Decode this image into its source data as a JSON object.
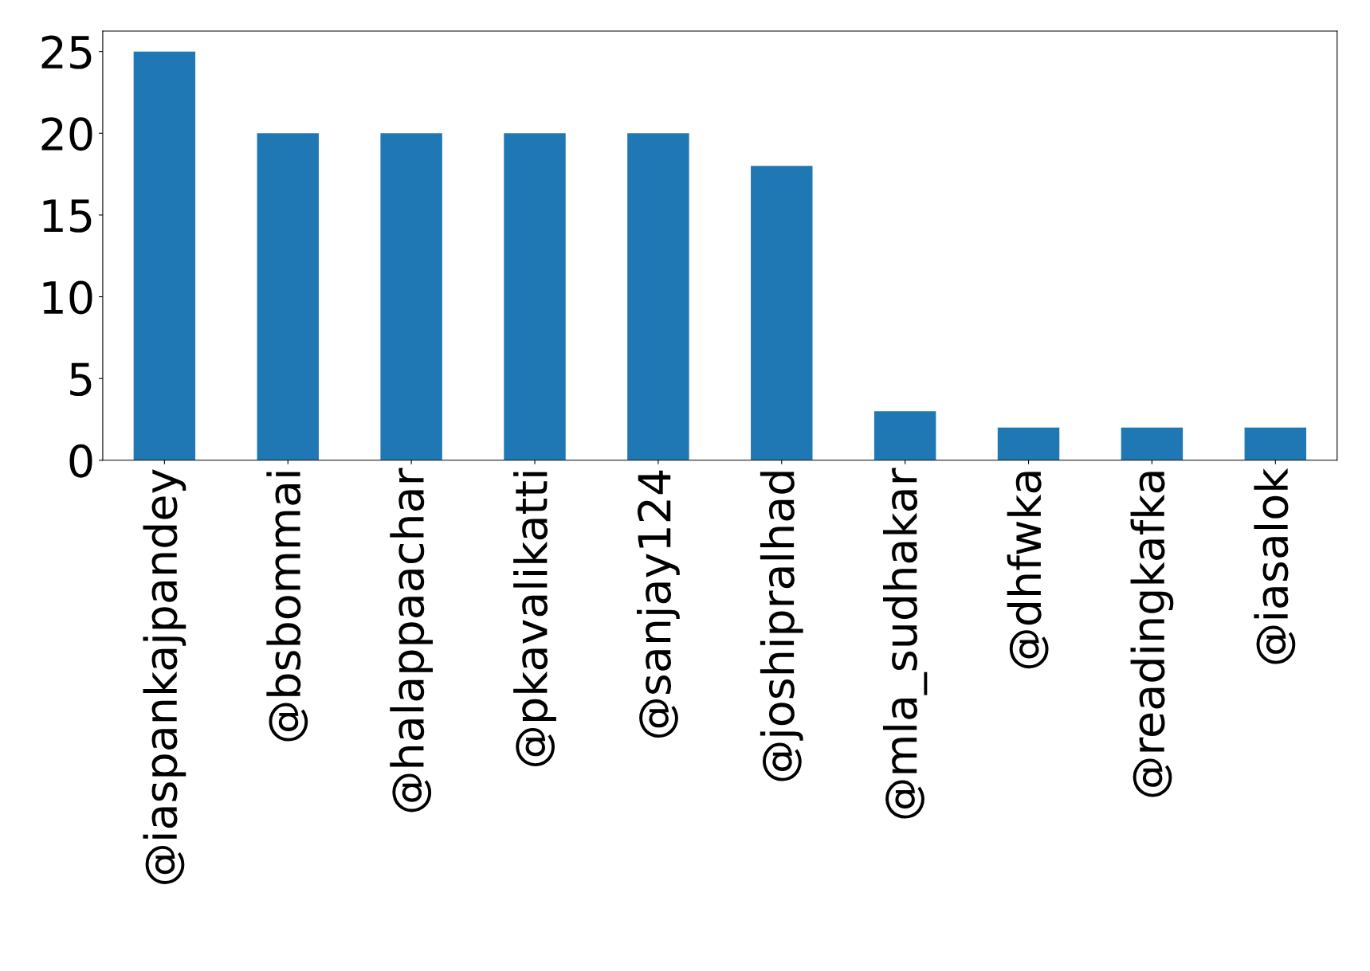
{
  "chart_data": {
    "type": "bar",
    "categories": [
      "@iaspankajpandey",
      "@bsbommai",
      "@halappaachar",
      "@pkavalikatti",
      "@sanjay124",
      "@joshipralhad",
      "@mla_sudhakar",
      "@dhfwka",
      "@readingkafka",
      "@iasalok"
    ],
    "values": [
      25,
      20,
      20,
      20,
      20,
      18,
      3,
      2,
      2,
      2
    ],
    "color": "#1f77b4",
    "ylim": [
      0,
      26.25
    ],
    "yticks": [
      0,
      5,
      10,
      15,
      20,
      25
    ],
    "grid": false,
    "legend": false
  }
}
